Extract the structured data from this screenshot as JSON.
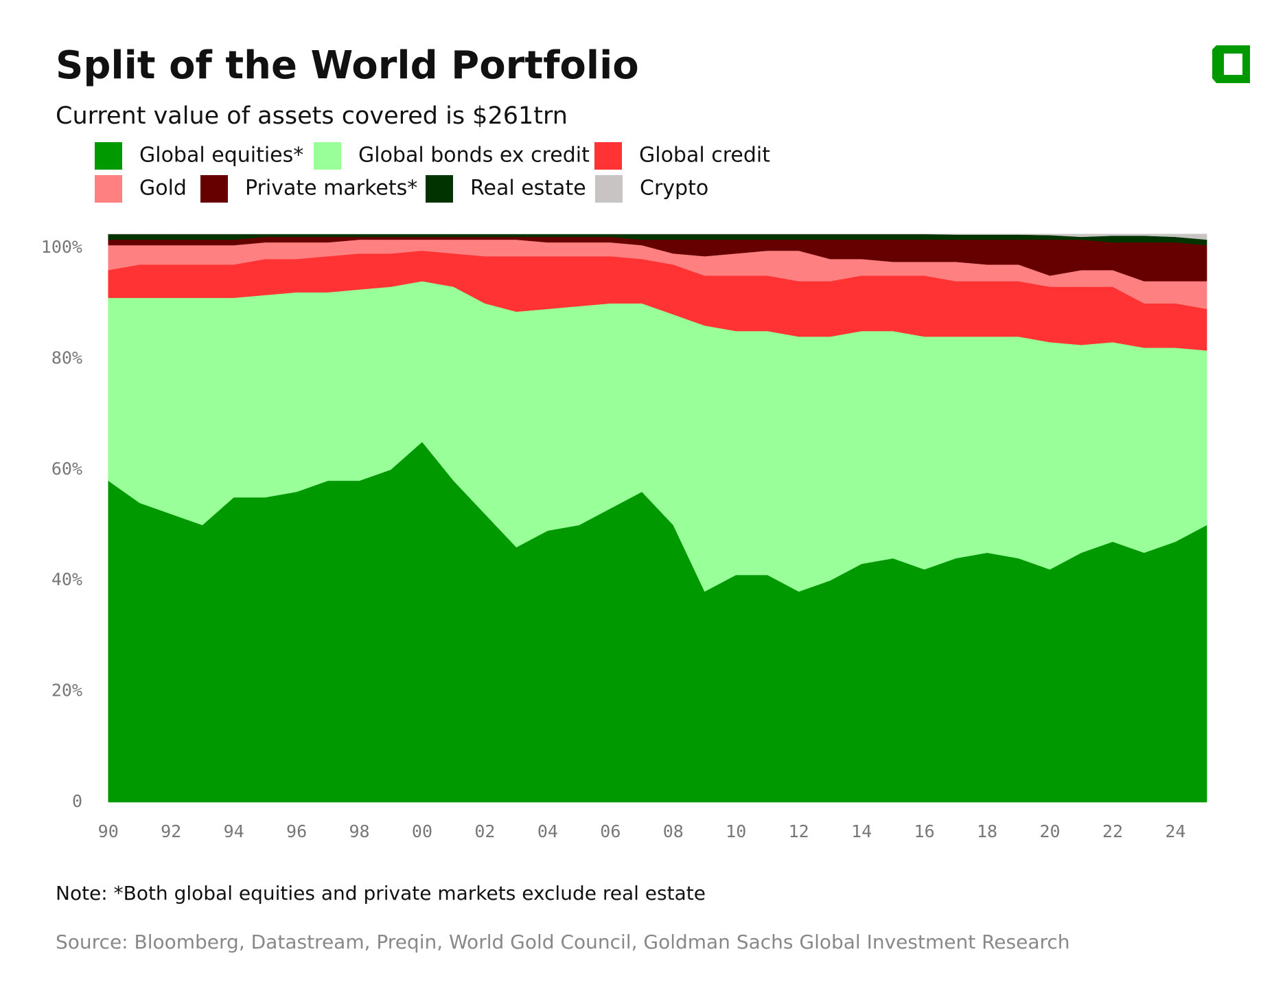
{
  "chart_data": {
    "type": "stacked_area",
    "title": "Split of the World Portfolio",
    "subtitle": "Current value of assets covered is $261trn",
    "note": "Note: *Both global equities and private markets exclude real estate",
    "source": "Source: Bloomberg, Datastream, Preqin, World Gold Council, Goldman Sachs Global Investment Research",
    "x": [
      1990,
      1991,
      1992,
      1993,
      1994,
      1995,
      1996,
      1997,
      1998,
      1999,
      2000,
      2001,
      2002,
      2003,
      2004,
      2005,
      2006,
      2007,
      2008,
      2009,
      2010,
      2011,
      2012,
      2013,
      2014,
      2015,
      2016,
      2017,
      2018,
      2019,
      2020,
      2021,
      2022,
      2023,
      2024,
      2025
    ],
    "xlim": [
      1989.7,
      2026.2
    ],
    "xticks": [
      {
        "value": 1990,
        "label": "90"
      },
      {
        "value": 1992,
        "label": "92"
      },
      {
        "value": 1994,
        "label": "94"
      },
      {
        "value": 1996,
        "label": "96"
      },
      {
        "value": 1998,
        "label": "98"
      },
      {
        "value": 2000,
        "label": "00"
      },
      {
        "value": 2002,
        "label": "02"
      },
      {
        "value": 2004,
        "label": "04"
      },
      {
        "value": 2006,
        "label": "06"
      },
      {
        "value": 2008,
        "label": "08"
      },
      {
        "value": 2010,
        "label": "10"
      },
      {
        "value": 2012,
        "label": "12"
      },
      {
        "value": 2014,
        "label": "14"
      },
      {
        "value": 2016,
        "label": "16"
      },
      {
        "value": 2018,
        "label": "18"
      },
      {
        "value": 2020,
        "label": "20"
      },
      {
        "value": 2022,
        "label": "22"
      },
      {
        "value": 2024,
        "label": "24"
      }
    ],
    "ylim": [
      0,
      102.5
    ],
    "yticks": [
      0,
      {
        "value": 20,
        "label": "20%"
      },
      {
        "value": 40,
        "label": "40%"
      },
      {
        "value": 60,
        "label": "60%"
      },
      {
        "value": 80,
        "label": "80%"
      },
      {
        "value": 100,
        "label": "100%"
      }
    ],
    "series": [
      {
        "name": "Global equities*",
        "color": "#009900",
        "values": [
          58,
          54,
          52,
          50,
          55,
          55,
          56,
          58,
          58,
          60,
          65,
          58,
          52,
          46,
          49,
          50,
          53,
          56,
          50,
          38,
          41,
          41,
          38,
          40,
          43,
          44,
          42,
          44,
          45,
          44,
          42,
          45,
          47,
          45,
          47,
          50
        ]
      },
      {
        "name": "Global bonds ex credit",
        "color": "#99ff99",
        "values": [
          33,
          37,
          39,
          41,
          36,
          36.5,
          36,
          34,
          34.5,
          33,
          29,
          35,
          38,
          42.5,
          40,
          39.5,
          37,
          34,
          38,
          48,
          44,
          44,
          46,
          44,
          42,
          41,
          42,
          40,
          39,
          40,
          41,
          37.5,
          36,
          37,
          35,
          31.5
        ]
      },
      {
        "name": "Global credit",
        "color": "#ff3333",
        "values": [
          5,
          6,
          6,
          6,
          6,
          6.5,
          6,
          6.5,
          6.5,
          6,
          5.5,
          6,
          8.5,
          10,
          9.5,
          9,
          8.5,
          8,
          9,
          9,
          10,
          10,
          10,
          10,
          10,
          10,
          11,
          10,
          10,
          10,
          10,
          10.5,
          10,
          8,
          8,
          7.5
        ]
      },
      {
        "name": "Gold",
        "color": "#ff8080",
        "values": [
          4.5,
          3.5,
          3.5,
          3.5,
          3.5,
          3,
          3,
          2.5,
          2.5,
          2.5,
          2,
          2.5,
          3,
          3,
          2.5,
          2.5,
          2.5,
          2.5,
          2,
          3.5,
          4,
          4.5,
          5.5,
          4,
          3,
          2.5,
          2.5,
          3.5,
          3,
          3,
          2,
          3,
          3,
          4,
          4,
          5
        ]
      },
      {
        "name": "Private markets*",
        "color": "#660000",
        "values": [
          1,
          1,
          1,
          1,
          1,
          1,
          1,
          1,
          0.5,
          0.5,
          0.5,
          0.5,
          0.5,
          0.5,
          1,
          1,
          1,
          1,
          2.5,
          3,
          2.5,
          2,
          2,
          3.5,
          3.5,
          4,
          4,
          4,
          4.5,
          4.5,
          6.5,
          5.5,
          5,
          7,
          7,
          6.5
        ]
      },
      {
        "name": "Real estate",
        "color": "#003300",
        "values": [
          1,
          1,
          1,
          1,
          1,
          0.5,
          0.5,
          0.5,
          0.5,
          0.5,
          0.5,
          0.5,
          0.5,
          0.5,
          0.5,
          0.5,
          0.5,
          1,
          1,
          1,
          1,
          1,
          1,
          1,
          1,
          1,
          1,
          0.9,
          0.9,
          0.9,
          0.8,
          0.5,
          1.2,
          1.2,
          1,
          1
        ]
      },
      {
        "name": "Crypto",
        "color": "#c8c4c4",
        "values": [
          0,
          0,
          0,
          0,
          0,
          0,
          0,
          0,
          0,
          0,
          0,
          0,
          0,
          0,
          0,
          0,
          0,
          0,
          0,
          0,
          0,
          0,
          0,
          0,
          0,
          0,
          0,
          0.1,
          0.1,
          0.1,
          0.2,
          0.5,
          0.3,
          0.3,
          0.5,
          1
        ]
      }
    ]
  }
}
